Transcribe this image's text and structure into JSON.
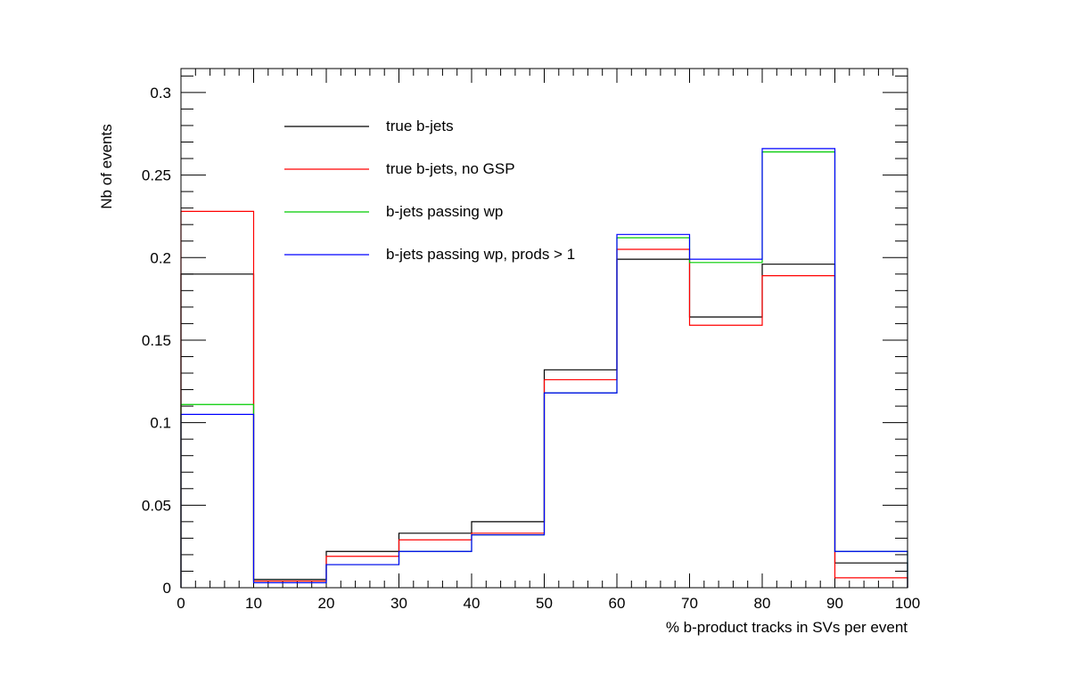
{
  "chart_data": {
    "type": "step-histogram",
    "xlabel": "% b-product tracks in SVs per event",
    "ylabel": "Nb of events",
    "xlim": [
      0,
      100
    ],
    "ylim": [
      0,
      0.3145
    ],
    "x_ticks": [
      0,
      10,
      20,
      30,
      40,
      50,
      60,
      70,
      80,
      90,
      100
    ],
    "x_tick_labels": [
      "0",
      "10",
      "20",
      "30",
      "40",
      "50",
      "60",
      "70",
      "80",
      "90",
      "100"
    ],
    "y_ticks": [
      0,
      0.05,
      0.1,
      0.15,
      0.2,
      0.25,
      0.3
    ],
    "y_tick_labels": [
      "0",
      "0.05",
      "0.1",
      "0.15",
      "0.2",
      "0.25",
      "0.3"
    ],
    "bin_edges": [
      0,
      10,
      20,
      30,
      40,
      50,
      60,
      70,
      80,
      90,
      100
    ],
    "grid": false,
    "legend_position": "top-left inside plot",
    "series": [
      {
        "name": "true b-jets",
        "color": "#000000",
        "values": [
          0.19,
          0.005,
          0.022,
          0.033,
          0.04,
          0.132,
          0.199,
          0.164,
          0.196,
          0.015
        ]
      },
      {
        "name": "true b-jets, no GSP",
        "color": "#ff0000",
        "values": [
          0.228,
          0.004,
          0.019,
          0.029,
          0.033,
          0.126,
          0.205,
          0.159,
          0.189,
          0.006
        ]
      },
      {
        "name": "b-jets passing wp",
        "color": "#00cc00",
        "values": [
          0.111,
          0.003,
          0.014,
          0.022,
          0.032,
          0.118,
          0.212,
          0.197,
          0.264,
          0.022
        ]
      },
      {
        "name": "b-jets passing wp, prods > 1",
        "color": "#0000ff",
        "values": [
          0.105,
          0.003,
          0.014,
          0.022,
          0.032,
          0.118,
          0.214,
          0.199,
          0.266,
          0.022
        ]
      }
    ]
  }
}
